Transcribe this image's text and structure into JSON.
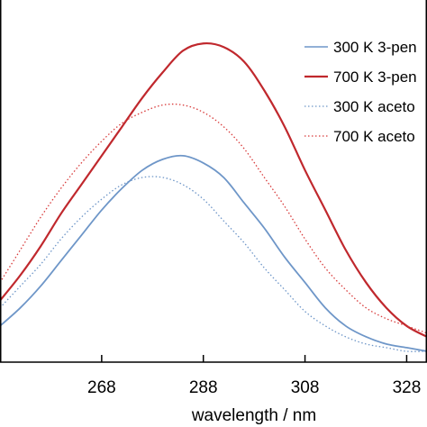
{
  "chart_data": {
    "type": "line",
    "title": "",
    "xlabel": "wavelength / nm",
    "ylabel": "",
    "xlim": [
      248,
      332
    ],
    "ylim": [
      0,
      1.0
    ],
    "x_ticks": [
      268,
      288,
      308,
      328
    ],
    "x_tick_labels": [
      "268",
      "288",
      "308",
      "328"
    ],
    "grid": false,
    "legend_position": "top-right",
    "series": [
      {
        "name": "300 K 3-pen",
        "color": "#6e96c8",
        "style": "solid",
        "x": [
          248,
          252,
          256,
          260,
          264,
          268,
          272,
          276,
          280,
          284,
          288,
          292,
          296,
          300,
          304,
          308,
          312,
          316,
          320,
          324,
          328,
          332
        ],
        "y": [
          0.1,
          0.15,
          0.21,
          0.28,
          0.35,
          0.42,
          0.48,
          0.53,
          0.56,
          0.57,
          0.55,
          0.51,
          0.44,
          0.37,
          0.29,
          0.22,
          0.15,
          0.1,
          0.07,
          0.05,
          0.04,
          0.03
        ]
      },
      {
        "name": "700 K 3-pen",
        "color": "#c0282d",
        "style": "solid",
        "x": [
          248,
          252,
          256,
          260,
          264,
          268,
          272,
          276,
          280,
          284,
          288,
          292,
          296,
          300,
          304,
          308,
          312,
          316,
          320,
          324,
          328,
          332
        ],
        "y": [
          0.17,
          0.24,
          0.32,
          0.41,
          0.49,
          0.57,
          0.65,
          0.73,
          0.8,
          0.86,
          0.88,
          0.87,
          0.83,
          0.75,
          0.65,
          0.53,
          0.42,
          0.31,
          0.22,
          0.15,
          0.1,
          0.07
        ]
      },
      {
        "name": "300 K aceto",
        "color": "#6e96c8",
        "style": "dotted",
        "x": [
          248,
          252,
          256,
          260,
          264,
          268,
          272,
          276,
          280,
          284,
          288,
          292,
          296,
          300,
          304,
          308,
          312,
          316,
          320,
          324,
          328,
          332
        ],
        "y": [
          0.15,
          0.21,
          0.27,
          0.34,
          0.4,
          0.45,
          0.49,
          0.51,
          0.51,
          0.49,
          0.45,
          0.39,
          0.33,
          0.26,
          0.2,
          0.14,
          0.1,
          0.07,
          0.05,
          0.04,
          0.03,
          0.03
        ]
      },
      {
        "name": "700 K aceto",
        "color": "#d83a3a",
        "style": "dotted",
        "x": [
          248,
          252,
          256,
          260,
          264,
          268,
          272,
          276,
          280,
          284,
          288,
          292,
          296,
          300,
          304,
          308,
          312,
          316,
          320,
          324,
          328,
          332
        ],
        "y": [
          0.22,
          0.31,
          0.4,
          0.48,
          0.55,
          0.61,
          0.66,
          0.69,
          0.71,
          0.71,
          0.69,
          0.65,
          0.59,
          0.51,
          0.43,
          0.34,
          0.26,
          0.2,
          0.15,
          0.12,
          0.1,
          0.08
        ]
      }
    ]
  }
}
